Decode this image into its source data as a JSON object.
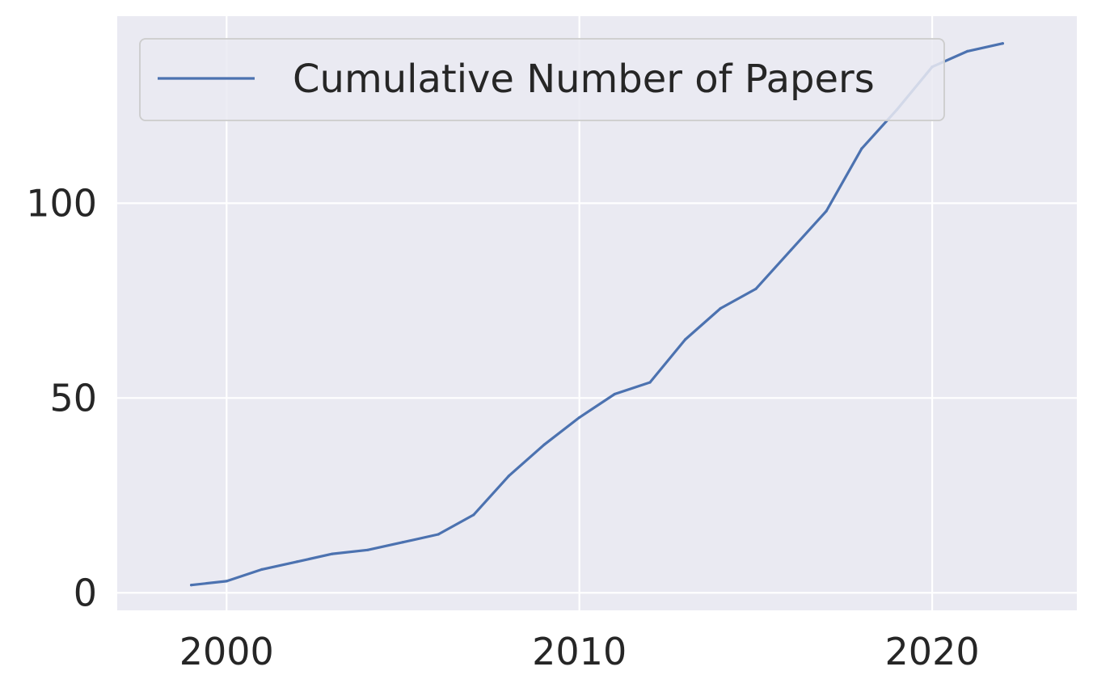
{
  "chart_data": {
    "type": "line",
    "title": "",
    "xlabel": "",
    "ylabel": "",
    "x": [
      1999,
      2000,
      2001,
      2002,
      2003,
      2004,
      2005,
      2006,
      2007,
      2008,
      2009,
      2010,
      2011,
      2012,
      2013,
      2014,
      2015,
      2016,
      2017,
      2018,
      2019,
      2020,
      2021,
      2022
    ],
    "series": [
      {
        "name": "Cumulative Number of Papers",
        "color": "#4c72b0",
        "values": [
          2,
          3,
          6,
          8,
          10,
          11,
          13,
          15,
          20,
          30,
          38,
          45,
          51,
          54,
          65,
          73,
          78,
          88,
          98,
          114,
          124,
          135,
          139,
          141
        ]
      }
    ],
    "xticks": [
      2000,
      2010,
      2020
    ],
    "yticks": [
      0,
      50,
      100
    ],
    "xlim": [
      1996.9,
      2024.1
    ],
    "ylim": [
      -4.5,
      148.0
    ],
    "grid": true,
    "legend_position": "top-left",
    "style": {
      "background": "#eaeaf2",
      "grid_color": "#ffffff",
      "text_color": "#262626",
      "legend_border": "#cccccc"
    }
  }
}
